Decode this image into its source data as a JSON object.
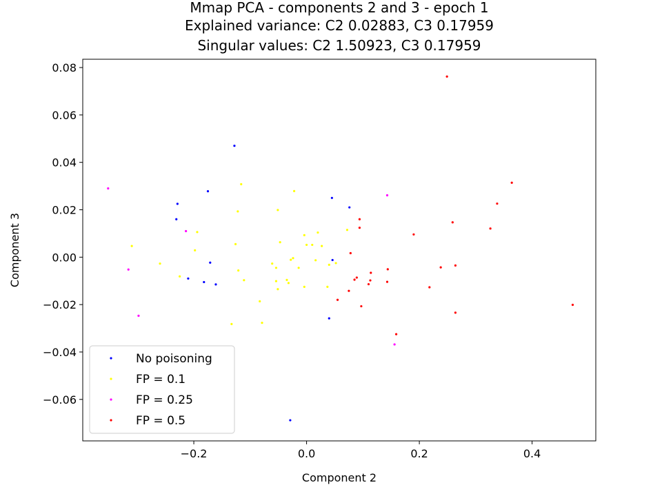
{
  "chart_data": {
    "type": "scatter",
    "title": [
      "Mmap PCA - components 2 and 3 - epoch 1",
      "Explained variance: C2 0.02883, C3 0.17959",
      "Singular values: C2 1.50923, C3 0.17959"
    ],
    "xlabel": "Component 2",
    "ylabel": "Component 3",
    "xlim": [
      -0.397,
      0.513
    ],
    "ylim": [
      -0.0775,
      0.0835
    ],
    "xticks": [
      -0.2,
      0.0,
      0.2,
      0.4
    ],
    "xtick_labels": [
      "−0.2",
      "0.0",
      "0.2",
      "0.4"
    ],
    "yticks": [
      -0.06,
      -0.04,
      -0.02,
      0.0,
      0.02,
      0.04,
      0.06,
      0.08
    ],
    "ytick_labels": [
      "−0.06",
      "−0.04",
      "−0.02",
      "0.00",
      "0.02",
      "0.04",
      "0.06",
      "0.08"
    ],
    "grid": false,
    "legend_position": "lower-left",
    "series": [
      {
        "name": "No poisoning",
        "color": "#0000ff",
        "points": [
          [
            -0.128,
            0.047
          ],
          [
            -0.175,
            0.0278
          ],
          [
            -0.229,
            0.0225
          ],
          [
            -0.231,
            0.016
          ],
          [
            0.045,
            0.025
          ],
          [
            0.076,
            0.021
          ],
          [
            -0.171,
            -0.0023
          ],
          [
            0.046,
            -0.0012
          ],
          [
            -0.21,
            -0.009
          ],
          [
            -0.182,
            -0.0105
          ],
          [
            -0.161,
            -0.0115
          ],
          [
            0.04,
            -0.0258
          ],
          [
            -0.029,
            -0.0688
          ]
        ]
      },
      {
        "name": "FP = 0.1",
        "color": "#ffff00",
        "points": [
          [
            -0.116,
            0.0308
          ],
          [
            -0.022,
            0.0279
          ],
          [
            -0.051,
            0.0199
          ],
          [
            -0.122,
            0.0193
          ],
          [
            0.072,
            0.0115
          ],
          [
            -0.194,
            0.0106
          ],
          [
            0.02,
            0.0104
          ],
          [
            -0.004,
            0.0093
          ],
          [
            -0.047,
            0.0063
          ],
          [
            -0.126,
            0.0055
          ],
          [
            0.0,
            0.0052
          ],
          [
            0.01,
            0.0052
          ],
          [
            0.027,
            0.0047
          ],
          [
            -0.31,
            0.0047
          ],
          [
            -0.198,
            0.0029
          ],
          [
            -0.028,
            -0.0011
          ],
          [
            -0.024,
            -0.0004
          ],
          [
            0.016,
            -0.0013
          ],
          [
            -0.061,
            -0.0027
          ],
          [
            -0.26,
            -0.0027
          ],
          [
            0.052,
            -0.0025
          ],
          [
            0.04,
            -0.0032
          ],
          [
            -0.054,
            -0.0045
          ],
          [
            -0.014,
            -0.0045
          ],
          [
            -0.121,
            -0.0056
          ],
          [
            -0.225,
            -0.0081
          ],
          [
            -0.111,
            -0.0097
          ],
          [
            -0.054,
            -0.0101
          ],
          [
            -0.035,
            -0.0096
          ],
          [
            -0.032,
            -0.0109
          ],
          [
            -0.004,
            -0.0125
          ],
          [
            0.037,
            -0.0125
          ],
          [
            -0.051,
            -0.0135
          ],
          [
            -0.083,
            -0.0186
          ],
          [
            -0.079,
            -0.0277
          ],
          [
            -0.133,
            -0.0282
          ]
        ]
      },
      {
        "name": "FP = 0.25",
        "color": "#ff00ff",
        "points": [
          [
            -0.352,
            0.029
          ],
          [
            0.143,
            0.0261
          ],
          [
            -0.214,
            0.011
          ],
          [
            -0.316,
            -0.0052
          ],
          [
            -0.298,
            -0.0247
          ],
          [
            0.156,
            -0.0368
          ]
        ]
      },
      {
        "name": "FP = 0.5",
        "color": "#ff0000",
        "points": [
          [
            0.249,
            0.0762
          ],
          [
            0.364,
            0.0314
          ],
          [
            0.338,
            0.0226
          ],
          [
            0.094,
            0.016
          ],
          [
            0.259,
            0.0147
          ],
          [
            0.094,
            0.0124
          ],
          [
            0.326,
            0.0121
          ],
          [
            0.19,
            0.0096
          ],
          [
            0.078,
            0.0017
          ],
          [
            0.264,
            -0.0035
          ],
          [
            0.238,
            -0.0043
          ],
          [
            0.144,
            -0.0051
          ],
          [
            0.114,
            -0.0066
          ],
          [
            0.089,
            -0.0086
          ],
          [
            0.085,
            -0.0095
          ],
          [
            0.113,
            -0.0098
          ],
          [
            0.143,
            -0.0104
          ],
          [
            0.11,
            -0.0114
          ],
          [
            0.218,
            -0.0127
          ],
          [
            0.075,
            -0.0142
          ],
          [
            0.055,
            -0.018
          ],
          [
            0.097,
            -0.0207
          ],
          [
            0.472,
            -0.0201
          ],
          [
            0.264,
            -0.0234
          ],
          [
            0.159,
            -0.0325
          ]
        ]
      }
    ]
  }
}
